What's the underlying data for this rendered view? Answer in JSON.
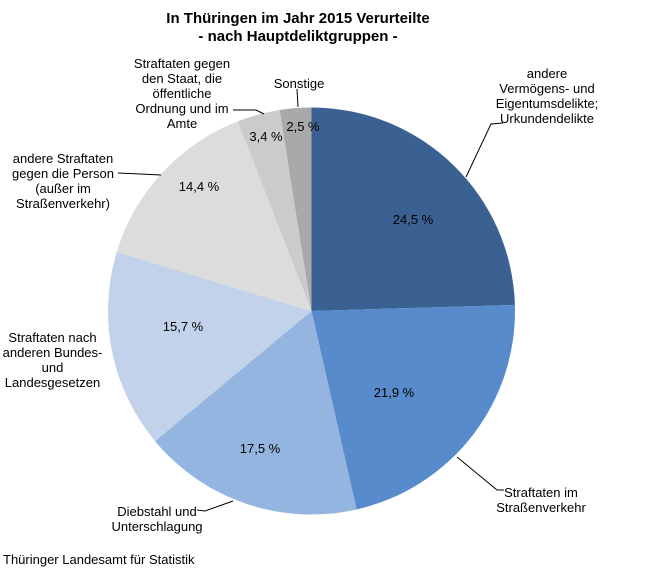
{
  "title": {
    "line1": "In Thüringen im Jahr 2015 Verurteilte",
    "line2": "- nach Hauptdeliktgruppen -"
  },
  "source": "Thüringer Landesamt für Statistik",
  "chart_data": {
    "type": "pie",
    "title": "In Thüringen im Jahr 2015 Verurteilte - nach Hauptdeliktgruppen -",
    "unit": "%",
    "start_angle_deg": -90,
    "direction": "clockwise",
    "legend": "none (direct labels with leader lines)",
    "slices": [
      {
        "label": "andere Vermögens- und Eigentumsdelikte; Urkundendelikte",
        "label_display": "andere\nVermögens- und\nEigentumsdelikte;\nUrkundendelikte",
        "value": 24.5,
        "value_label": "24,5 %",
        "color": "#3A6191"
      },
      {
        "label": "Straftaten im Straßenverkehr",
        "label_display": "Straftaten im\nStraßenverkehr",
        "value": 21.9,
        "value_label": "21,9 %",
        "color": "#578BCB"
      },
      {
        "label": "Diebstahl und Unterschlagung",
        "label_display": "Diebstahl und\nUnterschlagung",
        "value": 17.5,
        "value_label": "17,5 %",
        "color": "#95B5E1"
      },
      {
        "label": "Straftaten nach anderen Bundes- und Landesgesetzen",
        "label_display": "Straftaten nach\nanderen Bundes-\nund\nLandesgesetzen",
        "value": 15.7,
        "value_label": "15,7 %",
        "color": "#C2D2EA"
      },
      {
        "label": "andere Straftaten gegen die Person (außer im Straßenverkehr)",
        "label_display": "andere Straftaten\ngegen die Person\n(außer im\nStraßenverkehr)",
        "value": 14.4,
        "value_label": "14,4 %",
        "color": "#DCDCDC"
      },
      {
        "label": "Straftaten gegen den Staat, die öffentliche Ordnung und im Amte",
        "label_display": "Straftaten gegen\nden Staat, die\nöffentliche\nOrdnung und im\nAmte",
        "value": 3.4,
        "value_label": "3,4 %",
        "color": "#CBCBCB"
      },
      {
        "label": "Sonstige",
        "label_display": "Sonstige",
        "value": 2.5,
        "value_label": "2,5 %",
        "color": "#A9A9A9"
      }
    ]
  }
}
